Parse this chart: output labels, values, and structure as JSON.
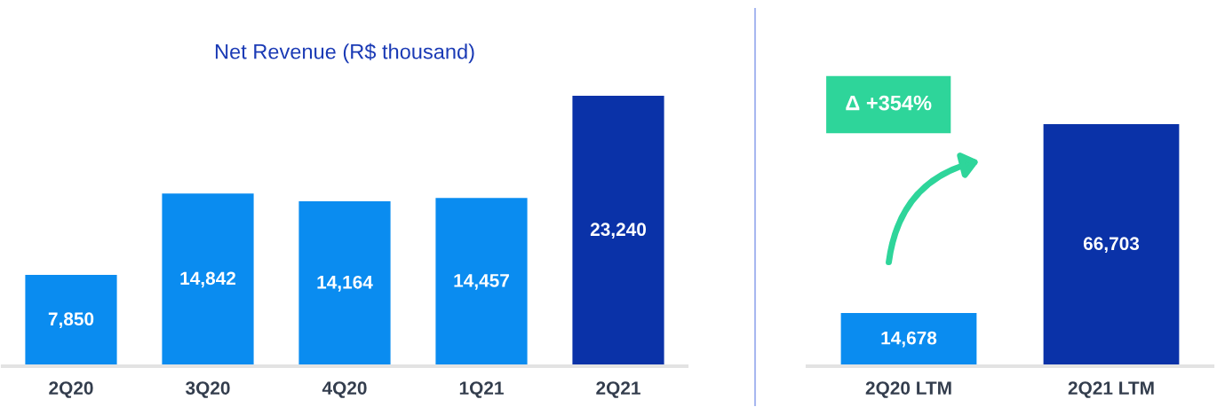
{
  "chart_data": [
    {
      "type": "bar",
      "title": "Net Revenue (R$ thousand)",
      "categories": [
        "2Q20",
        "3Q20",
        "4Q20",
        "1Q21",
        "2Q21"
      ],
      "values": [
        7850,
        14842,
        14164,
        14457,
        23240
      ],
      "colors": [
        "#0a8cf0",
        "#0a8cf0",
        "#0a8cf0",
        "#0a8cf0",
        "#0a32a8"
      ],
      "value_labels": [
        "7,850",
        "14,842",
        "14,164",
        "14,457",
        "23,240"
      ],
      "grid": false,
      "legend": false
    },
    {
      "type": "bar",
      "categories": [
        "2Q20 LTM",
        "2Q21 LTM"
      ],
      "values": [
        14678,
        66703
      ],
      "colors": [
        "#0a8cf0",
        "#0a32a8"
      ],
      "value_labels": [
        "14,678",
        "66,703"
      ],
      "annotations": [
        "Δ +354%"
      ],
      "grid": false,
      "legend": false
    }
  ]
}
